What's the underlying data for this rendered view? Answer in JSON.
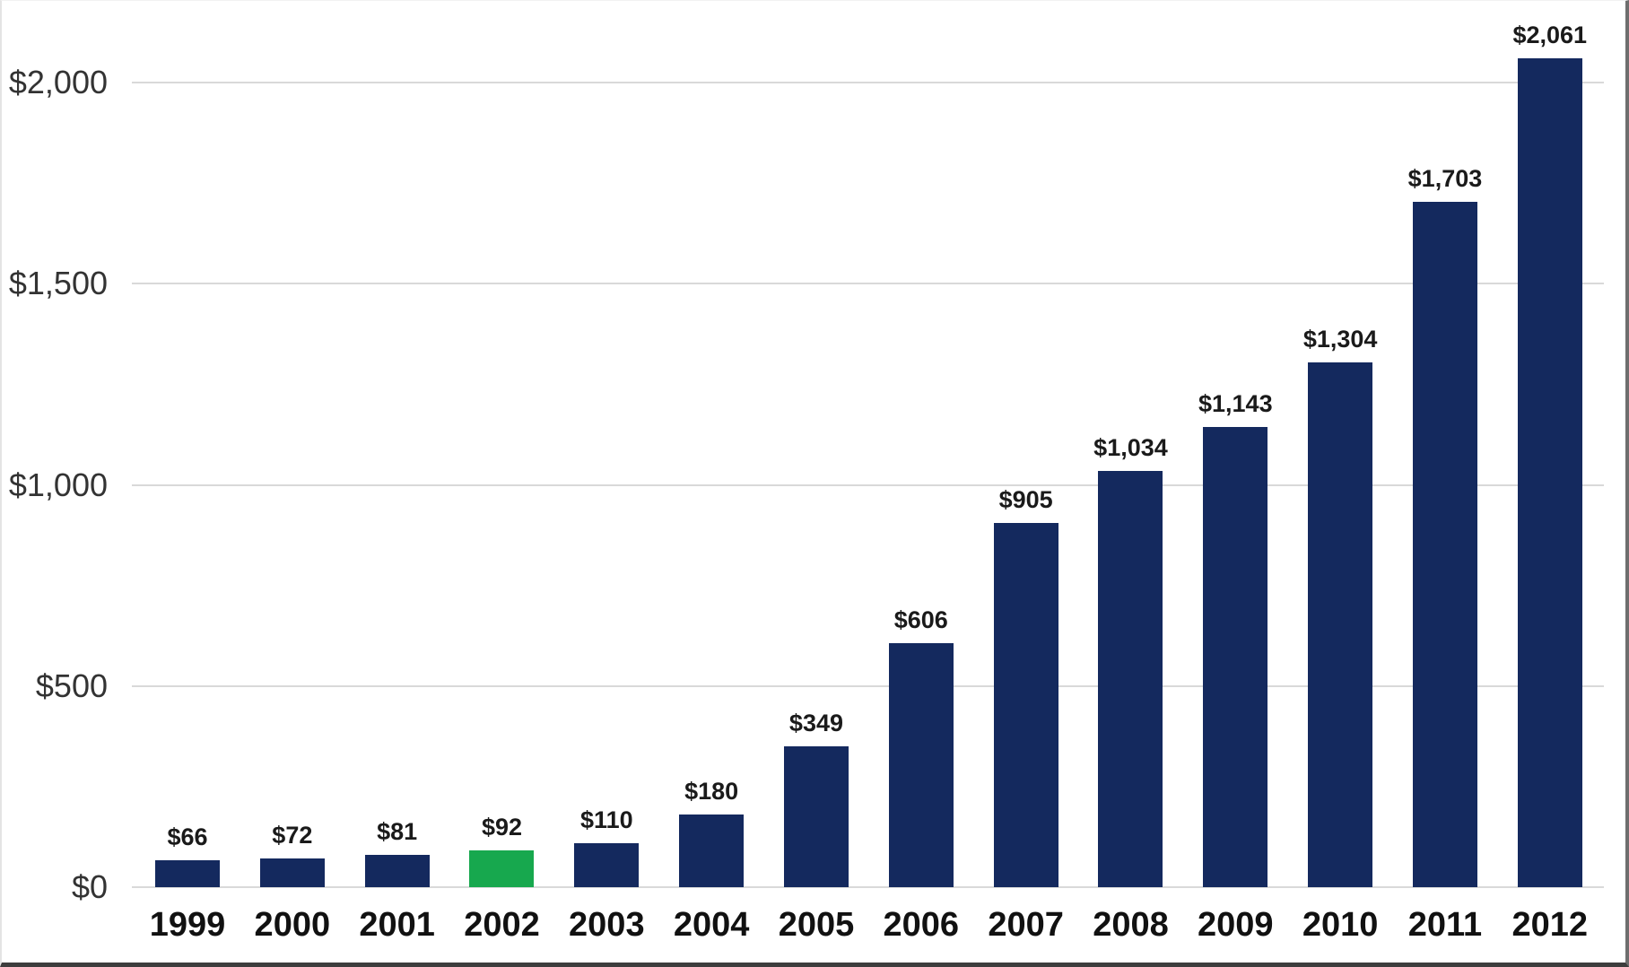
{
  "chart_data": {
    "type": "bar",
    "title": "",
    "xlabel": "",
    "ylabel": "",
    "categories": [
      "1999",
      "2000",
      "2001",
      "2002",
      "2003",
      "2004",
      "2005",
      "2006",
      "2007",
      "2008",
      "2009",
      "2010",
      "2011",
      "2012"
    ],
    "values": [
      66,
      72,
      81,
      92,
      110,
      180,
      349,
      606,
      905,
      1034,
      1143,
      1304,
      1703,
      2061
    ],
    "value_labels": [
      "$66",
      "$72",
      "$81",
      "$92",
      "$110",
      "$180",
      "$349",
      "$606",
      "$905",
      "$1,034",
      "$1,143",
      "$1,304",
      "$1,703",
      "$2,061"
    ],
    "ylim": [
      0,
      2250
    ],
    "y_ticks": [
      {
        "value": 0,
        "label": "$0"
      },
      {
        "value": 500,
        "label": "$500"
      },
      {
        "value": 1000,
        "label": "$1,000"
      },
      {
        "value": 1500,
        "label": "$1,500"
      },
      {
        "value": 2000,
        "label": "$2,000"
      }
    ],
    "grid": true,
    "legend": false,
    "highlight": {
      "category": "2002",
      "index": 3
    },
    "colors": {
      "bar": "#14295E",
      "highlight_bar": "#17A84E",
      "gridline": "#D9D9D9",
      "value_label": "#1A1A1A",
      "y_tick_label": "#333333",
      "x_tick_label": "#111111"
    }
  }
}
